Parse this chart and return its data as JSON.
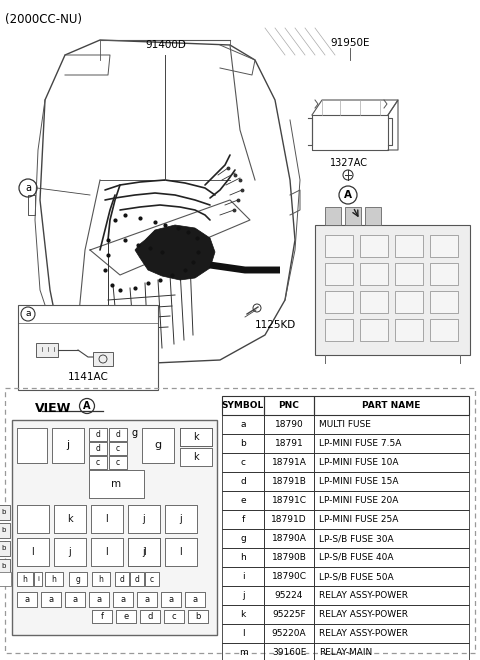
{
  "title_text": "(2000CC-NU)",
  "bg_color": "#ffffff",
  "diagram_label": "91400D",
  "label_1141AC": "1141AC",
  "label_91950E": "91950E",
  "label_1327AC": "1327AC",
  "label_1125KD": "1125KD",
  "view_label": "VIEW",
  "table_headers": [
    "SYMBOL",
    "PNC",
    "PART NAME"
  ],
  "table_rows": [
    [
      "a",
      "18790",
      "MULTI FUSE"
    ],
    [
      "b",
      "18791",
      "LP-MINI FUSE 7.5A"
    ],
    [
      "c",
      "18791A",
      "LP-MINI FUSE 10A"
    ],
    [
      "d",
      "18791B",
      "LP-MINI FUSE 15A"
    ],
    [
      "e",
      "18791C",
      "LP-MINI FUSE 20A"
    ],
    [
      "f",
      "18791D",
      "LP-MINI FUSE 25A"
    ],
    [
      "g",
      "18790A",
      "LP-S/B FUSE 30A"
    ],
    [
      "h",
      "18790B",
      "LP-S/B FUSE 40A"
    ],
    [
      "i",
      "18790C",
      "LP-S/B FUSE 50A"
    ],
    [
      "j",
      "95224",
      "RELAY ASSY-POWER"
    ],
    [
      "k",
      "95225F",
      "RELAY ASSY-POWER"
    ],
    [
      "l",
      "95220A",
      "RELAY ASSY-POWER"
    ],
    [
      "m",
      "39160E",
      "RELAY-MAIN"
    ]
  ],
  "text_color": "#000000",
  "line_color": "#555555"
}
